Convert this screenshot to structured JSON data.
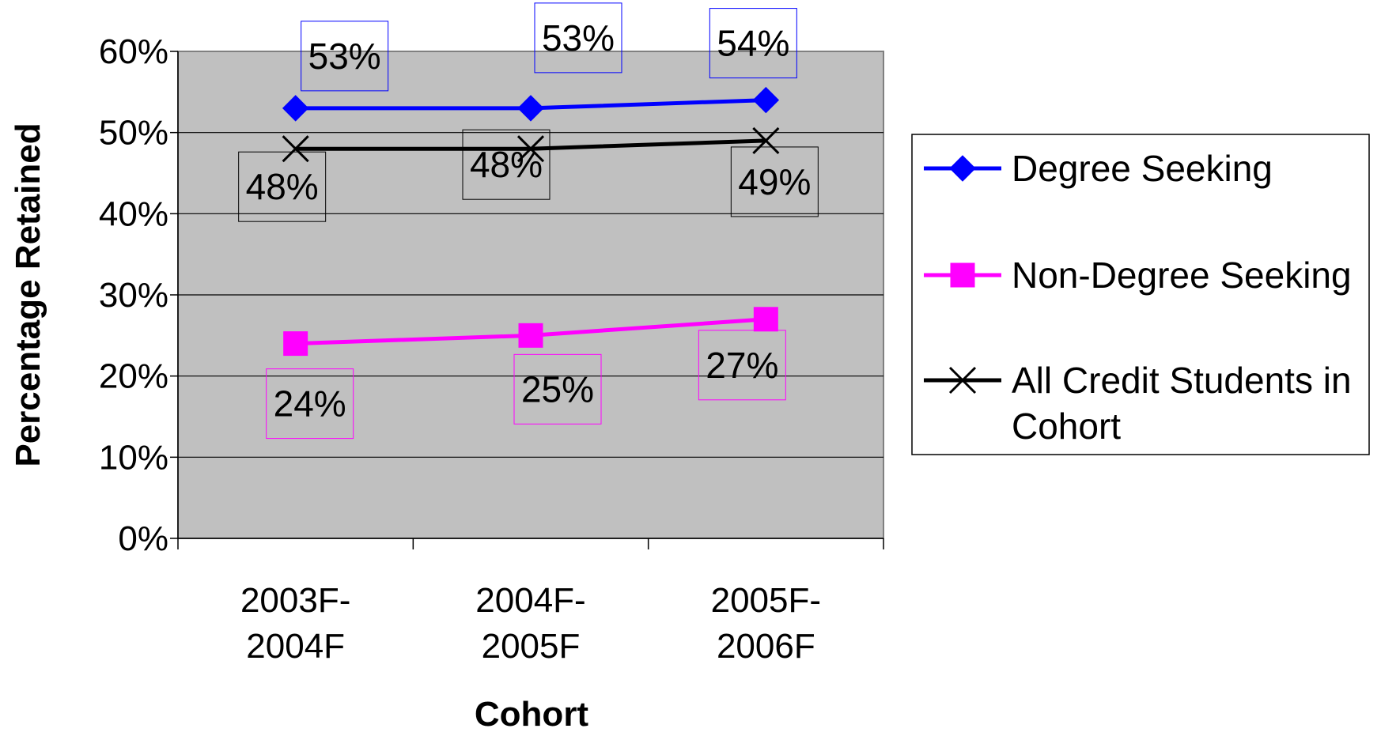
{
  "chart_data": {
    "type": "line",
    "categories": [
      "2003F-\n2004F",
      "2004F-\n2005F",
      "2005F-\n2006F"
    ],
    "series": [
      {
        "name": "Degree Seeking",
        "values": [
          53,
          53,
          54
        ],
        "labels": [
          "53%",
          "53%",
          "54%"
        ],
        "color": "#0000ff",
        "marker": "diamond"
      },
      {
        "name": "Non-Degree Seeking",
        "values": [
          24,
          25,
          27
        ],
        "labels": [
          "24%",
          "25%",
          "27%"
        ],
        "color": "#ff00ff",
        "marker": "square"
      },
      {
        "name": "All Credit Students in Cohort",
        "values": [
          48,
          48,
          49
        ],
        "labels": [
          "48%",
          "48%",
          "49%"
        ],
        "color": "#000000",
        "marker": "x"
      }
    ],
    "xlabel": "Cohort",
    "ylabel": "Percentage Retained",
    "ylim": [
      0,
      60
    ],
    "yticks": [
      "0%",
      "10%",
      "20%",
      "30%",
      "40%",
      "50%",
      "60%"
    ],
    "grid": true,
    "plot_background": "#c0c0c0",
    "legend_position": "right"
  }
}
